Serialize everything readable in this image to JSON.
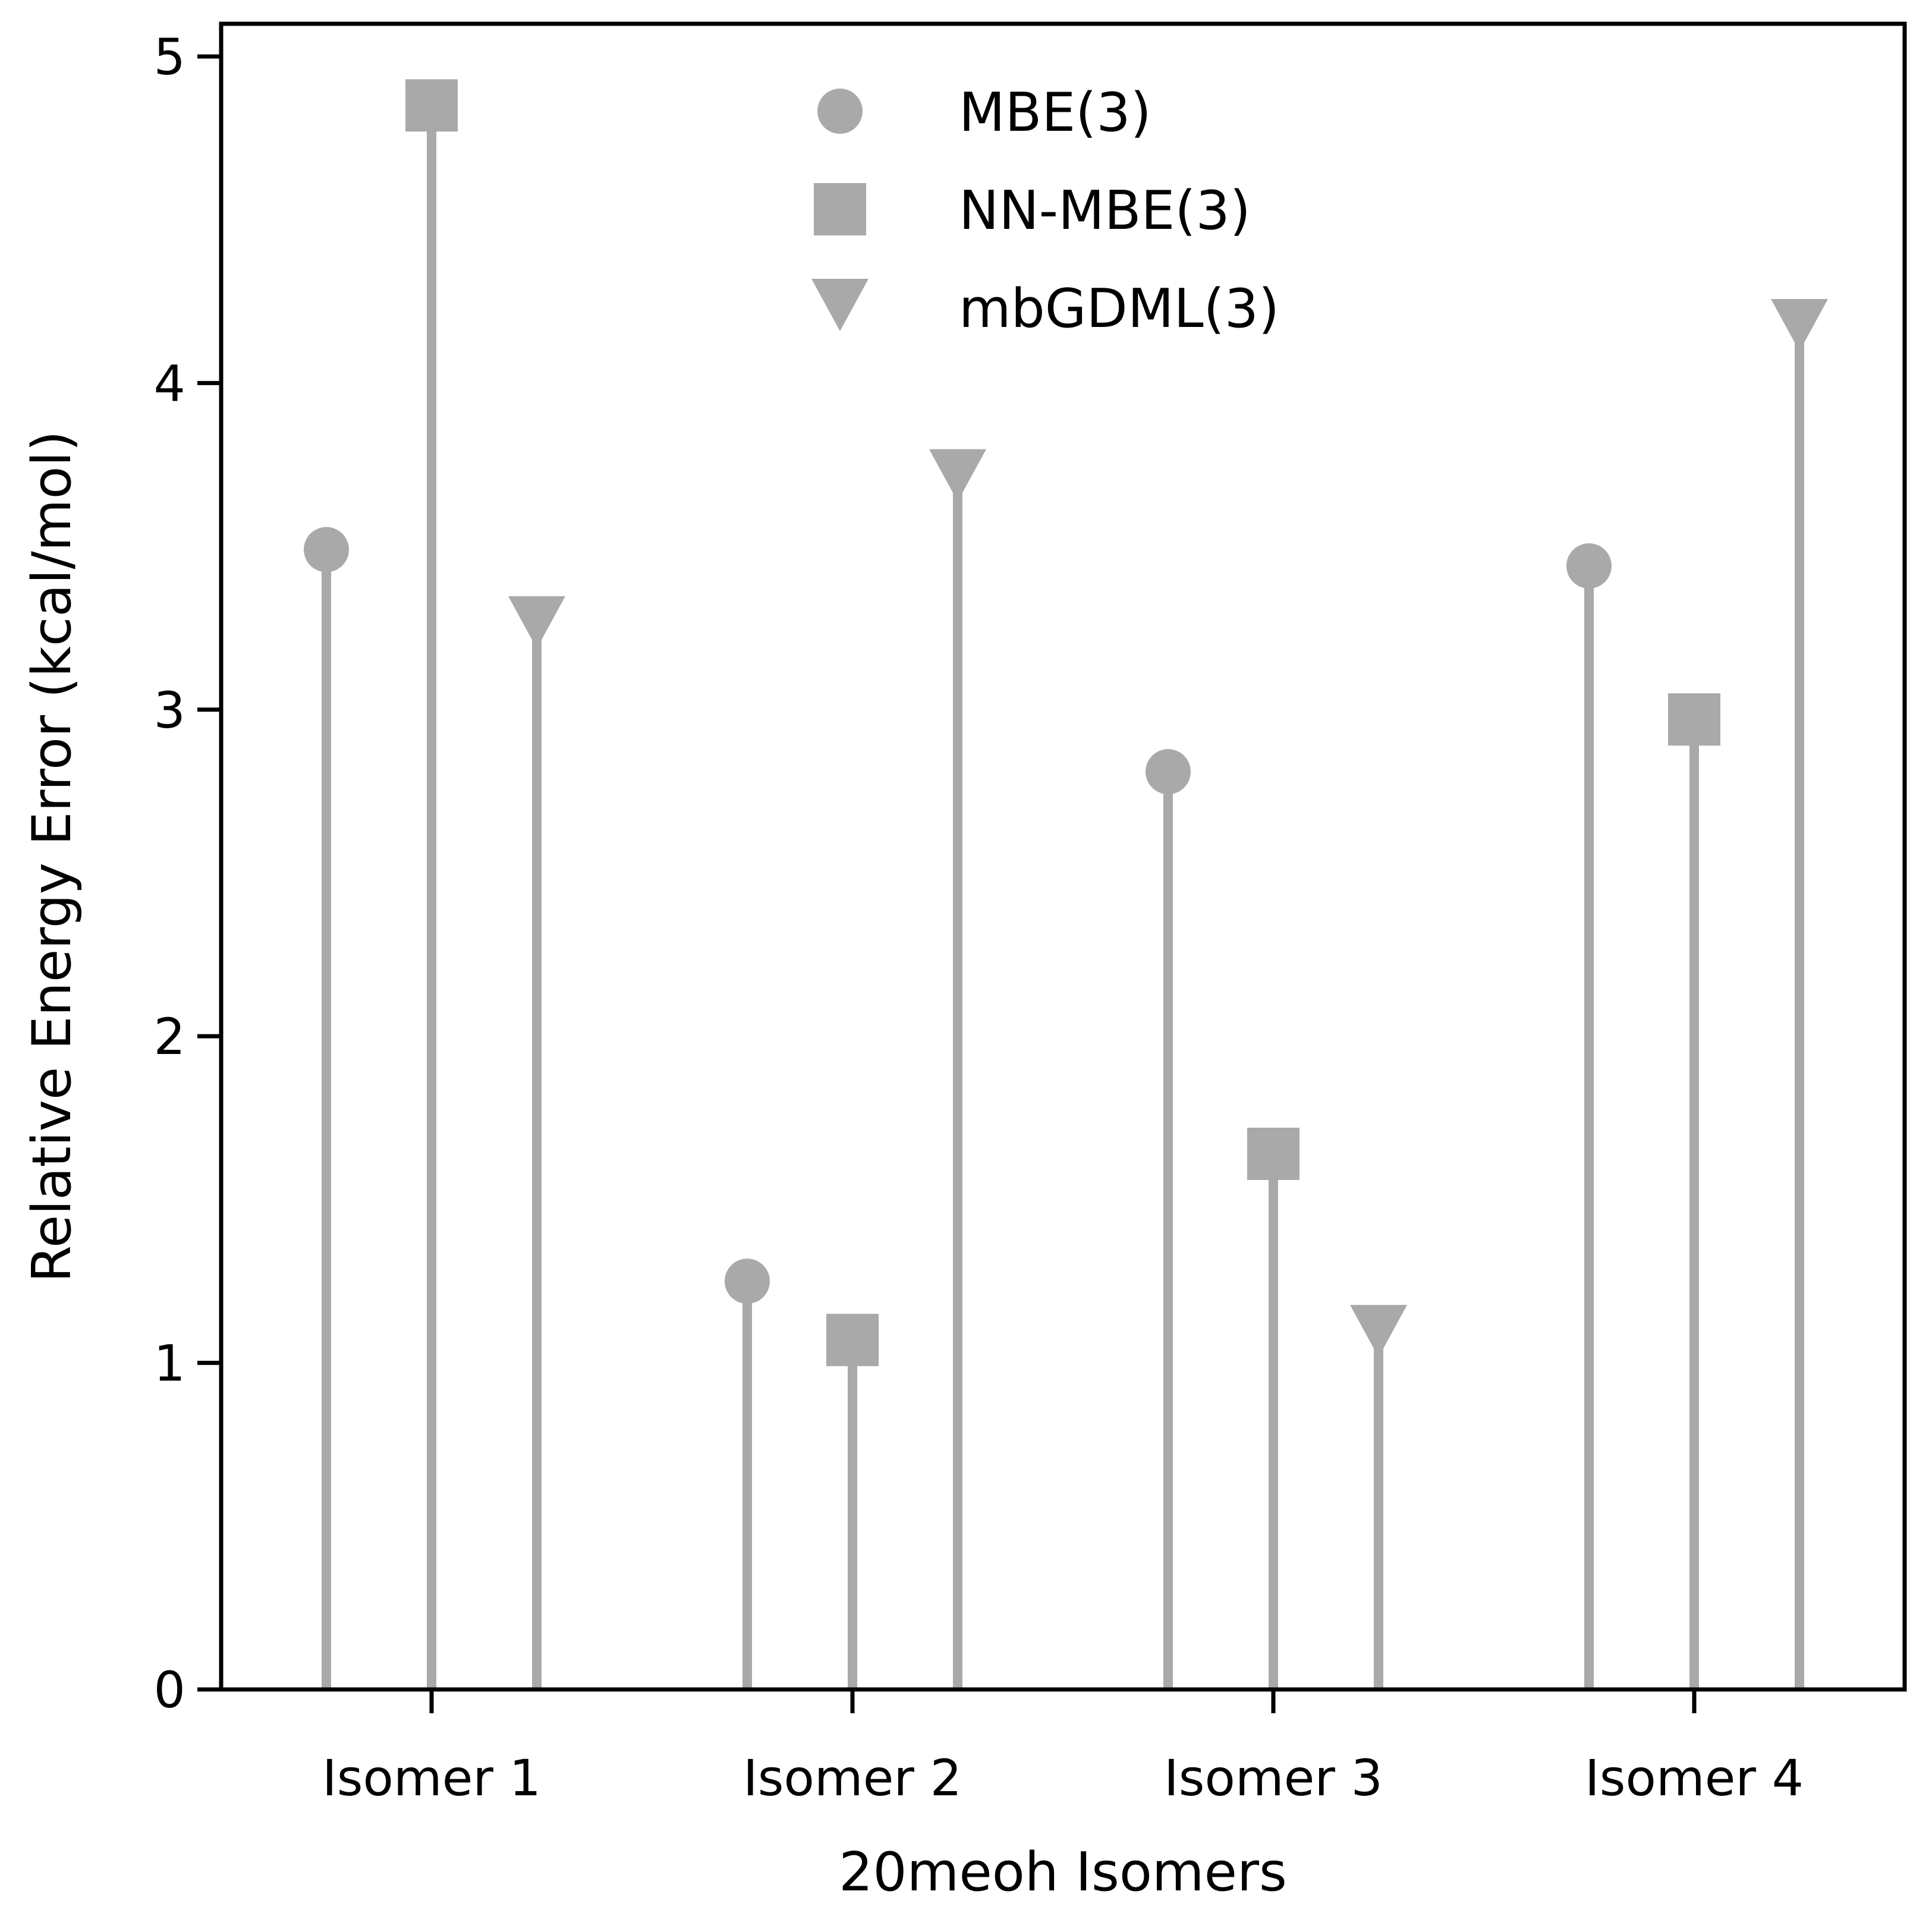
{
  "chart_data": {
    "type": "stem",
    "title": "",
    "xlabel": "20meoh Isomers",
    "ylabel": "Relative Energy Error (kcal/mol)",
    "categories": [
      "Isomer 1",
      "Isomer 2",
      "Isomer 3",
      "Isomer 4"
    ],
    "ylim": [
      0,
      5.1
    ],
    "yticks": [
      0,
      1,
      2,
      3,
      4,
      5
    ],
    "grid": false,
    "legend_position": "top-center",
    "marker_color": "#a9a9a9",
    "series": [
      {
        "name": "MBE(3)",
        "marker": "circle",
        "values": [
          3.49,
          1.25,
          2.81,
          3.44
        ]
      },
      {
        "name": "NN-MBE(3)",
        "marker": "square",
        "values": [
          4.85,
          1.07,
          1.64,
          2.97
        ]
      },
      {
        "name": "mbGDML(3)",
        "marker": "triangle-down",
        "values": [
          3.26,
          3.71,
          1.09,
          4.17
        ]
      }
    ]
  }
}
